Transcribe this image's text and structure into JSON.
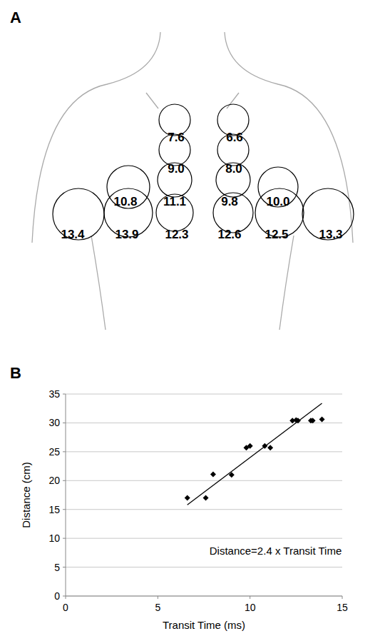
{
  "panel_labels": [
    "A",
    "B"
  ],
  "diagram": {
    "values": [
      "7.6",
      "6.6",
      "9.0",
      "8.0",
      "10.8",
      "11.1",
      "9.8",
      "10.0",
      "13.4",
      "13.9",
      "12.3",
      "12.6",
      "12.5",
      "13.3"
    ]
  },
  "chart_data": {
    "type": "scatter",
    "x_label": "Transit Time (ms)",
    "y_label": "Distance (cm)",
    "annotation": "Distance=2.4 x Transit Time",
    "xlim": [
      0,
      15
    ],
    "xticks": [
      0,
      5,
      10,
      15
    ],
    "ylim": [
      0,
      35
    ],
    "yticks": [
      0,
      5,
      10,
      15,
      20,
      25,
      30,
      35
    ],
    "grid": true,
    "series": [
      {
        "type": "scatter",
        "marker": "diamond",
        "color": "#000000",
        "x": [
          6.6,
          7.6,
          8.0,
          9.0,
          9.8,
          10.0,
          10.8,
          11.1,
          12.3,
          12.5,
          12.6,
          13.3,
          13.4,
          13.9
        ],
        "values": [
          17.0,
          17.0,
          21.1,
          21.0,
          25.7,
          26.0,
          26.0,
          25.7,
          30.4,
          30.5,
          30.4,
          30.4,
          30.4,
          30.6
        ]
      },
      {
        "type": "line",
        "line_style": "solid",
        "color": "#000000",
        "x": [
          6.6,
          13.9
        ],
        "values": [
          15.8,
          33.4
        ]
      }
    ]
  }
}
